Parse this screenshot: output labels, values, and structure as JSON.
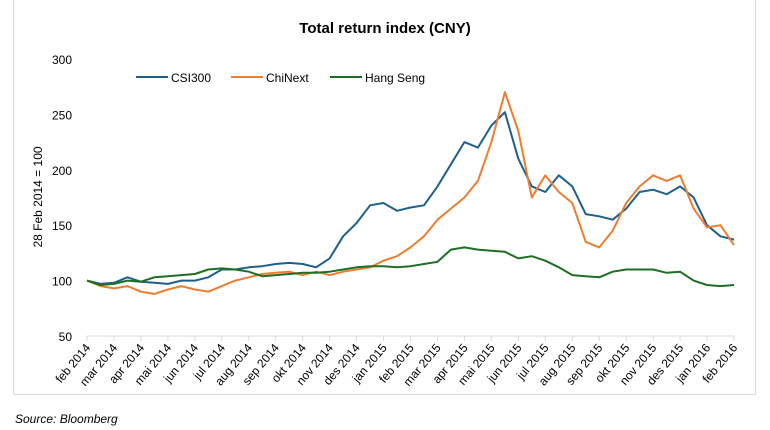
{
  "chart_data": {
    "type": "line",
    "title": "Total return index (CNY)",
    "ylabel": "28 Feb 2014 = 100",
    "xlabel": "",
    "ylim": [
      50,
      300
    ],
    "yticks": [
      50,
      100,
      150,
      200,
      250,
      300
    ],
    "grid": false,
    "legend_placement": "top-left",
    "x_tick_labels": [
      "feb 2014",
      "mar 2014",
      "apr 2014",
      "mai 2014",
      "jun 2014",
      "jul 2014",
      "aug 2014",
      "sep 2014",
      "okt 2014",
      "nov 2014",
      "des 2014",
      "jan 2015",
      "feb 2015",
      "mar 2015",
      "apr 2015",
      "mai 2015",
      "jun 2015",
      "jul 2015",
      "aug 2015",
      "sep 2015",
      "okt 2015",
      "nov 2015",
      "des 2015",
      "jan 2016",
      "feb 2016"
    ],
    "x_months": [
      0,
      0.5,
      1,
      1.5,
      2,
      2.5,
      3,
      3.5,
      4,
      4.5,
      5,
      5.5,
      6,
      6.5,
      7,
      7.5,
      8,
      8.5,
      9,
      9.5,
      10,
      10.5,
      11,
      11.5,
      12,
      12.5,
      13,
      13.5,
      14,
      14.5,
      15,
      15.5,
      16,
      16.5,
      17,
      17.5,
      18,
      18.5,
      19,
      19.5,
      20,
      20.5,
      21,
      21.5,
      22,
      22.5,
      23,
      23.5,
      24
    ],
    "series": [
      {
        "name": "CSI300",
        "color": "#1f5f8b",
        "values": [
          100,
          97,
          98,
          103,
          99,
          98,
          97,
          100,
          100,
          103,
          110,
          110,
          112,
          113,
          115,
          116,
          115,
          112,
          120,
          140,
          152,
          168,
          170,
          163,
          166,
          168,
          185,
          205,
          225,
          220,
          240,
          252,
          210,
          185,
          180,
          195,
          185,
          160,
          158,
          155,
          165,
          180,
          182,
          178,
          185,
          175,
          150,
          140,
          137
        ]
      },
      {
        "name": "ChiNext",
        "color": "#ed7d31",
        "values": [
          100,
          95,
          93,
          95,
          90,
          88,
          92,
          95,
          92,
          90,
          95,
          100,
          103,
          106,
          107,
          108,
          105,
          108,
          105,
          108,
          110,
          112,
          118,
          122,
          130,
          140,
          155,
          165,
          175,
          190,
          225,
          270,
          235,
          175,
          195,
          180,
          170,
          135,
          130,
          145,
          170,
          185,
          195,
          190,
          195,
          165,
          148,
          150,
          132
        ]
      },
      {
        "name": "Hang Seng",
        "color": "#1e6e24",
        "values": [
          100,
          96,
          97,
          100,
          99,
          103,
          104,
          105,
          106,
          110,
          111,
          110,
          108,
          104,
          105,
          106,
          107,
          107,
          108,
          110,
          112,
          113,
          113,
          112,
          113,
          115,
          117,
          128,
          130,
          128,
          127,
          126,
          120,
          122,
          118,
          112,
          105,
          104,
          103,
          108,
          110,
          110,
          110,
          107,
          108,
          100,
          96,
          95,
          96
        ]
      }
    ]
  },
  "source": "Source: Bloomberg"
}
